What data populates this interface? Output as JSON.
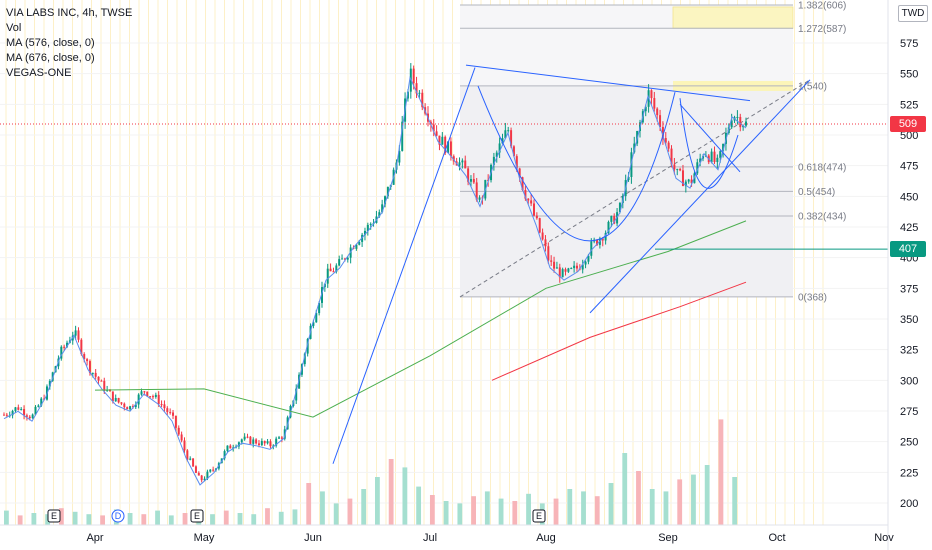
{
  "header": {
    "title": "VIA LABS INC, 4h, TWSE",
    "indicators": [
      "Vol",
      "MA (576, close, 0)",
      "MA (676, close, 0)",
      "VEGAS-ONE"
    ],
    "currency": "TWD"
  },
  "price_badges": [
    {
      "value": "509",
      "color": "#f23645"
    },
    {
      "value": "407",
      "color": "#089981"
    }
  ],
  "chart_data": {
    "type": "candlestick",
    "title": "VIA LABS INC, 4h, TWSE",
    "x_labels": [
      "Apr",
      "May",
      "Jun",
      "Jul",
      "Aug",
      "Sep",
      "Oct",
      "Nov"
    ],
    "y_ticks": [
      200,
      225,
      250,
      275,
      300,
      325,
      350,
      375,
      400,
      425,
      450,
      475,
      500,
      525,
      550,
      575
    ],
    "ylim": [
      185,
      600
    ],
    "current_price": 509,
    "horizontal_level": 407,
    "price_path": [
      {
        "date": "Mar",
        "price": 272
      },
      {
        "date": "Mar",
        "price": 278
      },
      {
        "date": "Mar",
        "price": 270
      },
      {
        "date": "Apr",
        "price": 290
      },
      {
        "date": "Apr",
        "price": 322
      },
      {
        "date": "Apr",
        "price": 340
      },
      {
        "date": "Apr",
        "price": 312
      },
      {
        "date": "Apr",
        "price": 296
      },
      {
        "date": "Apr",
        "price": 283
      },
      {
        "date": "May",
        "price": 278
      },
      {
        "date": "May",
        "price": 292
      },
      {
        "date": "May",
        "price": 284
      },
      {
        "date": "May",
        "price": 270
      },
      {
        "date": "May",
        "price": 240
      },
      {
        "date": "May",
        "price": 218
      },
      {
        "date": "May",
        "price": 228
      },
      {
        "date": "Jun",
        "price": 245
      },
      {
        "date": "Jun",
        "price": 252
      },
      {
        "date": "Jun",
        "price": 250
      },
      {
        "date": "Jun",
        "price": 247
      },
      {
        "date": "Jun",
        "price": 256
      },
      {
        "date": "Jun",
        "price": 300
      },
      {
        "date": "Jun",
        "price": 348
      },
      {
        "date": "Jun",
        "price": 385
      },
      {
        "date": "Jul",
        "price": 395
      },
      {
        "date": "Jul",
        "price": 412
      },
      {
        "date": "Jul",
        "price": 425
      },
      {
        "date": "Jul",
        "price": 440
      },
      {
        "date": "Jul",
        "price": 475
      },
      {
        "date": "Jul",
        "price": 550
      },
      {
        "date": "Jul",
        "price": 525
      },
      {
        "date": "Jul",
        "price": 498
      },
      {
        "date": "Aug",
        "price": 485
      },
      {
        "date": "Aug",
        "price": 470
      },
      {
        "date": "Aug",
        "price": 445
      },
      {
        "date": "Aug",
        "price": 480
      },
      {
        "date": "Aug",
        "price": 505
      },
      {
        "date": "Aug",
        "price": 460
      },
      {
        "date": "Aug",
        "price": 430
      },
      {
        "date": "Aug",
        "price": 395
      },
      {
        "date": "Aug",
        "price": 385
      },
      {
        "date": "Aug",
        "price": 392
      },
      {
        "date": "Aug",
        "price": 410
      },
      {
        "date": "Sep",
        "price": 422
      },
      {
        "date": "Sep",
        "price": 440
      },
      {
        "date": "Sep",
        "price": 490
      },
      {
        "date": "Sep",
        "price": 535
      },
      {
        "date": "Sep",
        "price": 505
      },
      {
        "date": "Sep",
        "price": 468
      },
      {
        "date": "Sep",
        "price": 460
      },
      {
        "date": "Sep",
        "price": 488
      },
      {
        "date": "Sep",
        "price": 475
      },
      {
        "date": "Sep",
        "price": 518
      },
      {
        "date": "Sep",
        "price": 509
      }
    ],
    "moving_averages": [
      {
        "name": "MA (576, close, 0)",
        "color": "#4caf50",
        "points": [
          {
            "date": "Apr",
            "price": 292
          },
          {
            "date": "May",
            "price": 293
          },
          {
            "date": "Jun",
            "price": 270
          },
          {
            "date": "Jul",
            "price": 320
          },
          {
            "date": "Aug",
            "price": 375
          },
          {
            "date": "Sep",
            "price": 405
          },
          {
            "date": "Sep",
            "price": 430
          }
        ]
      },
      {
        "name": "MA (676, close, 0)",
        "color": "#f23645",
        "points": [
          {
            "date": "Jul",
            "price": 300
          },
          {
            "date": "Aug",
            "price": 335
          },
          {
            "date": "Sep",
            "price": 360
          },
          {
            "date": "Sep",
            "price": 380
          }
        ]
      }
    ],
    "fib_levels": [
      {
        "label": "0(368)",
        "value": 368
      },
      {
        "label": "0.382(434)",
        "value": 434
      },
      {
        "label": "0.5(454)",
        "value": 454
      },
      {
        "label": "0.618(474)",
        "value": 474
      },
      {
        "label": "1(540)",
        "value": 540
      },
      {
        "label": "1.272(587)",
        "value": 587
      },
      {
        "label": "1.382(606)",
        "value": 606
      }
    ],
    "volume": [
      12,
      8,
      10,
      9,
      14,
      11,
      9,
      8,
      13,
      10,
      9,
      12,
      8,
      10,
      11,
      9,
      12,
      10,
      9,
      14,
      11,
      13,
      35,
      28,
      18,
      22,
      30,
      40,
      55,
      48,
      32,
      25,
      20,
      18,
      24,
      28,
      22,
      20,
      26,
      18,
      22,
      30,
      28,
      24,
      35,
      60,
      45,
      30,
      28,
      38,
      42,
      50,
      88,
      40
    ],
    "event_markers": [
      "E",
      "D",
      "E",
      "E"
    ],
    "colors": {
      "up": "#089981",
      "down": "#f23645",
      "fib_fill": "#f0f0f3",
      "fib_highlight": "#fff59d",
      "trend": "#2962ff"
    }
  }
}
